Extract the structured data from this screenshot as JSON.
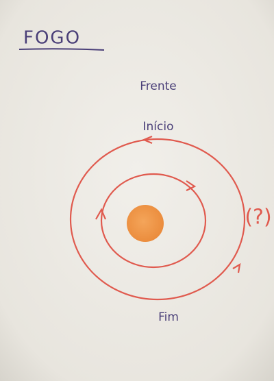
{
  "header": {
    "title": "FOGO"
  },
  "labels": {
    "top": "Frente",
    "start": "Início",
    "end": "Fim",
    "side": "(?)"
  }
}
